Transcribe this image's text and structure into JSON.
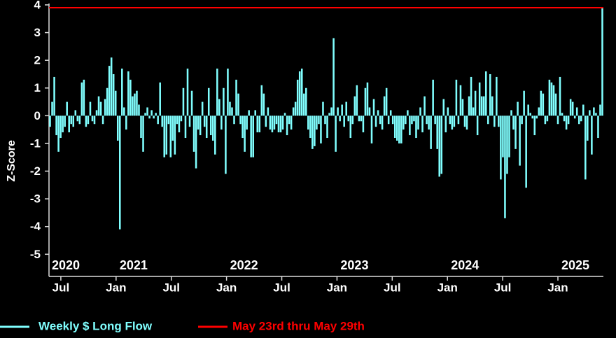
{
  "chart_data": {
    "type": "bar",
    "ylabel": "Z-Score",
    "ylim": [
      -5.8,
      4.05
    ],
    "yticks": [
      4,
      3,
      2,
      1,
      0,
      -1,
      -2,
      -3,
      -4,
      -5
    ],
    "xtick_labels": [
      "Jul",
      "Jan",
      "Jul",
      "Jan",
      "Jul",
      "Jan",
      "Jul",
      "Jan",
      "Jul",
      "Jan"
    ],
    "year_labels": [
      "2020",
      "2021",
      "2022",
      "2023",
      "2024",
      "2025"
    ],
    "series": [
      {
        "name": "Weekly $ Long Flow",
        "color": "#80ffff",
        "values": [
          -0.4,
          0.5,
          1.4,
          -0.7,
          -1.3,
          -0.8,
          -0.6,
          -0.4,
          0.5,
          -0.6,
          -0.3,
          -0.4,
          0.2,
          -0.2,
          -0.3,
          1.2,
          1.3,
          -0.4,
          -0.3,
          0.5,
          -0.2,
          -0.3,
          0.2,
          0.7,
          0.5,
          -0.3,
          0.6,
          1.0,
          1.8,
          2.1,
          1.5,
          0.9,
          -0.9,
          -4.1,
          1.7,
          0.3,
          -0.5,
          1.6,
          1.3,
          0.7,
          0.8,
          0.9,
          0.4,
          -0.8,
          -1.3,
          0.1,
          0.3,
          -0.1,
          0.2,
          -0.1,
          0.1,
          -0.3,
          1.2,
          -0.4,
          -1.5,
          -1.4,
          -0.3,
          -1.5,
          -0.9,
          -1.4,
          -0.3,
          -0.6,
          -0.2,
          1.0,
          -0.8,
          1.7,
          -0.4,
          0.9,
          -1.3,
          -1.9,
          -0.5,
          -0.7,
          0.5,
          -0.4,
          -0.8,
          1.0,
          -0.7,
          -0.9,
          -1.4,
          1.7,
          0.6,
          -0.5,
          1.0,
          -2.1,
          1.7,
          0.5,
          0.3,
          -0.3,
          1.3,
          0.8,
          -0.3,
          -0.8,
          -1.3,
          -0.5,
          0.2,
          -1.5,
          -1.5,
          0.2,
          -0.6,
          -0.6,
          1.1,
          0.8,
          -0.4,
          0.3,
          -0.5,
          -0.6,
          -0.5,
          -0.3,
          -0.6,
          -0.6,
          -0.5,
          0.1,
          -0.7,
          -0.3,
          -0.5,
          0.3,
          0.5,
          1.3,
          1.6,
          1.7,
          0.8,
          1.0,
          -0.5,
          -0.8,
          -1.2,
          -1.1,
          -0.5,
          -0.3,
          -1.0,
          0.5,
          -0.3,
          -0.8,
          0.1,
          0.3,
          2.8,
          -1.3,
          0.3,
          -0.2,
          0.4,
          -0.4,
          0.5,
          -0.2,
          -0.8,
          -0.3,
          0.7,
          1.1,
          -0.2,
          -0.2,
          -0.6,
          1.0,
          1.2,
          0.3,
          -1.0,
          0.6,
          -0.4,
          0.2,
          -0.3,
          -0.5,
          0.7,
          1.0,
          -0.3,
          0.2,
          -0.3,
          -0.8,
          -0.9,
          -1.0,
          -1.0,
          -0.5,
          -0.3,
          0.2,
          -0.7,
          -0.3,
          -0.2,
          -0.8,
          -0.5,
          0.3,
          -0.6,
          0.7,
          -0.3,
          -0.5,
          -1.2,
          1.3,
          -0.3,
          -1.2,
          -2.2,
          -2.1,
          0.6,
          -0.6,
          0.3,
          -0.3,
          -0.5,
          -0.4,
          1.3,
          -0.3,
          1.1,
          0.6,
          -0.4,
          -0.5,
          0.7,
          1.4,
          0.3,
          0.9,
          -0.7,
          1.2,
          0.7,
          0.7,
          1.6,
          -0.3,
          1.5,
          0.7,
          -0.4,
          1.4,
          -0.4,
          -2.3,
          -1.5,
          -3.7,
          -2.1,
          -1.5,
          0.2,
          -0.5,
          -1.2,
          0.5,
          -1.8,
          -0.3,
          0.9,
          -2.6,
          0.4,
          0.1,
          -0.1,
          -0.7,
          -0.1,
          0.3,
          0.9,
          0.8,
          -0.3,
          -0.2,
          1.3,
          1.2,
          1.1,
          0.8,
          -0.3,
          1.4,
          0.1,
          -0.2,
          -0.5,
          -0.3,
          0.6,
          0.5,
          -0.1,
          0.3,
          -0.3,
          -0.2,
          0.4,
          -2.3,
          -0.9,
          0.2,
          -1.4,
          0.3,
          0.1,
          -0.8,
          0.4,
          3.9
        ]
      },
      {
        "name": "May 23rd thru May 29th",
        "color": "#ff0000",
        "values": [
          3.9
        ]
      }
    ]
  }
}
